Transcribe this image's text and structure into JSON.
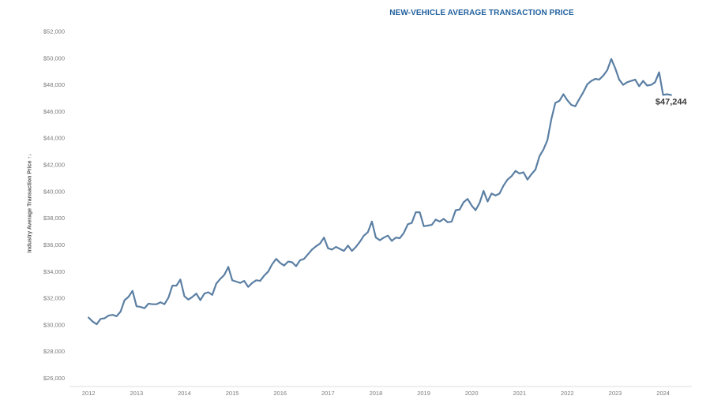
{
  "chart_data": {
    "type": "line",
    "title": "NEW-VEHICLE AVERAGE TRANSACTION PRICE",
    "ylabel": "Industry Average Transaction Price ↑↓",
    "xlabel": "",
    "ylim": [
      25500,
      52000
    ],
    "xlim": [
      2011.6,
      2024.6
    ],
    "yticks": [
      26000,
      28000,
      30000,
      32000,
      34000,
      36000,
      38000,
      40000,
      42000,
      44000,
      46000,
      48000,
      50000,
      52000
    ],
    "ytick_labels": [
      "$26,000",
      "$28,000",
      "$30,000",
      "$32,000",
      "$34,000",
      "$36,000",
      "$38,000",
      "$40,000",
      "$42,000",
      "$44,000",
      "$46,000",
      "$48,000",
      "$50,000",
      "$52,000"
    ],
    "xticks": [
      2012,
      2013,
      2014,
      2015,
      2016,
      2017,
      2018,
      2019,
      2020,
      2021,
      2022,
      2023,
      2024
    ],
    "xtick_labels": [
      "2012",
      "2013",
      "2014",
      "2015",
      "2016",
      "2017",
      "2018",
      "2019",
      "2020",
      "2021",
      "2022",
      "2023",
      "2024"
    ],
    "grid": false,
    "end_label": "$47,244",
    "line_color": "#5b7fa3",
    "series": [
      {
        "x": [
          2012.0,
          2012.083,
          2012.167,
          2012.25,
          2012.333,
          2012.417,
          2012.5,
          2012.583,
          2012.667,
          2012.75,
          2012.833,
          2012.917,
          2013.0,
          2013.083,
          2013.167,
          2013.25,
          2013.333,
          2013.417,
          2013.5,
          2013.583,
          2013.667,
          2013.75,
          2013.833,
          2013.917,
          2014.0,
          2014.083,
          2014.167,
          2014.25,
          2014.333,
          2014.417,
          2014.5,
          2014.583,
          2014.667,
          2014.75,
          2014.833,
          2014.917,
          2015.0,
          2015.083,
          2015.167,
          2015.25,
          2015.333,
          2015.417,
          2015.5,
          2015.583,
          2015.667,
          2015.75,
          2015.833,
          2015.917,
          2016.0,
          2016.083,
          2016.167,
          2016.25,
          2016.333,
          2016.417,
          2016.5,
          2016.583,
          2016.667,
          2016.75,
          2016.833,
          2016.917,
          2017.0,
          2017.083,
          2017.167,
          2017.25,
          2017.333,
          2017.417,
          2017.5,
          2017.583,
          2017.667,
          2017.75,
          2017.833,
          2017.917,
          2018.0,
          2018.083,
          2018.167,
          2018.25,
          2018.333,
          2018.417,
          2018.5,
          2018.583,
          2018.667,
          2018.75,
          2018.833,
          2018.917,
          2019.0,
          2019.083,
          2019.167,
          2019.25,
          2019.333,
          2019.417,
          2019.5,
          2019.583,
          2019.667,
          2019.75,
          2019.833,
          2019.917,
          2020.0,
          2020.083,
          2020.167,
          2020.25,
          2020.333,
          2020.417,
          2020.5,
          2020.583,
          2020.667,
          2020.75,
          2020.833,
          2020.917,
          2021.0,
          2021.083,
          2021.167,
          2021.25,
          2021.333,
          2021.417,
          2021.5,
          2021.583,
          2021.667,
          2021.75,
          2021.833,
          2021.917,
          2022.0,
          2022.083,
          2022.167,
          2022.25,
          2022.333,
          2022.417,
          2022.5,
          2022.583,
          2022.667,
          2022.75,
          2022.833,
          2022.917,
          2023.0,
          2023.083,
          2023.167,
          2023.25,
          2023.333,
          2023.417,
          2023.5,
          2023.583,
          2023.667,
          2023.75,
          2023.833,
          2023.917,
          2024.0,
          2024.083,
          2024.167
        ],
        "values": [
          30550,
          30250,
          30050,
          30450,
          30500,
          30700,
          30750,
          30650,
          31000,
          31850,
          32100,
          32550,
          31400,
          31350,
          31250,
          31600,
          31550,
          31550,
          31700,
          31550,
          32050,
          32950,
          32950,
          33400,
          32150,
          31900,
          32100,
          32350,
          31850,
          32350,
          32450,
          32250,
          33100,
          33450,
          33750,
          34350,
          33350,
          33250,
          33150,
          33300,
          32850,
          33150,
          33350,
          33300,
          33700,
          34000,
          34550,
          34950,
          34650,
          34450,
          34750,
          34700,
          34400,
          34850,
          34950,
          35300,
          35650,
          35900,
          36100,
          36550,
          35750,
          35650,
          35850,
          35700,
          35550,
          35950,
          35550,
          35850,
          36250,
          36700,
          36950,
          37750,
          36550,
          36350,
          36550,
          36700,
          36300,
          36550,
          36500,
          36900,
          37550,
          37650,
          38450,
          38450,
          37400,
          37450,
          37500,
          37900,
          37750,
          37950,
          37700,
          37750,
          38600,
          38650,
          39200,
          39450,
          38950,
          38600,
          39150,
          40050,
          39250,
          39850,
          39700,
          39850,
          40450,
          40900,
          41150,
          41550,
          41350,
          41450,
          40900,
          41300,
          41650,
          42650,
          43150,
          43850,
          45450,
          46650,
          46800,
          47300,
          46850,
          46500,
          46400,
          46950,
          47450,
          48050,
          48300,
          48450,
          48400,
          48700,
          49100,
          49950,
          49250,
          48400,
          48000,
          48200,
          48300,
          48400,
          47900,
          48300,
          47950,
          48000,
          48200,
          48950,
          47250,
          47300,
          47244
        ]
      }
    ]
  }
}
